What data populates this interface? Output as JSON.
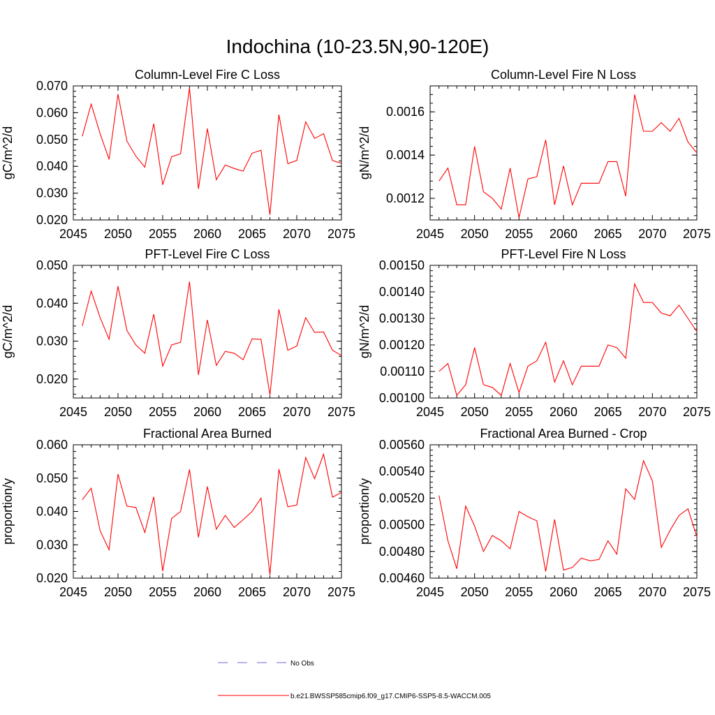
{
  "title": "Indochina (10-23.5N,90-120E)",
  "line_color": "#ff0000",
  "obs_color": "#6a6ac8",
  "legend": {
    "obs_label": "No Obs",
    "model_label": "b.e21.BWSSP585cmip6.f09_g17.CMIP6-SSP5-8.5-WACCM.005"
  },
  "chart_data": [
    {
      "type": "line",
      "title": "Column-Level Fire C Loss",
      "ylabel": "gC/m^2/d",
      "xlim": [
        2045,
        2075
      ],
      "ylim": [
        0.02,
        0.07
      ],
      "xticks": [
        "2045",
        "2050",
        "2055",
        "2060",
        "2065",
        "2070",
        "2075"
      ],
      "yticks": [
        "0.020",
        "0.030",
        "0.040",
        "0.050",
        "0.060",
        "0.070"
      ],
      "x": [
        2046,
        2047,
        2048,
        2049,
        2050,
        2051,
        2052,
        2053,
        2054,
        2055,
        2056,
        2057,
        2058,
        2059,
        2060,
        2061,
        2062,
        2063,
        2064,
        2065,
        2066,
        2067,
        2068,
        2069,
        2070,
        2071,
        2072,
        2073,
        2074,
        2075
      ],
      "y": [
        0.0512,
        0.0632,
        0.0522,
        0.0426,
        0.0669,
        0.0494,
        0.0438,
        0.0397,
        0.0559,
        0.0331,
        0.0436,
        0.0447,
        0.0693,
        0.0316,
        0.0541,
        0.035,
        0.0405,
        0.0392,
        0.0382,
        0.0449,
        0.046,
        0.0219,
        0.0593,
        0.041,
        0.0422,
        0.0566,
        0.0504,
        0.0522,
        0.0422,
        0.0411
      ]
    },
    {
      "type": "line",
      "title": "Column-Level Fire N Loss",
      "ylabel": "gN/m^2/d",
      "xlim": [
        2045,
        2075
      ],
      "ylim": [
        0.0011,
        0.00172
      ],
      "xticks": [
        "2045",
        "2050",
        "2055",
        "2060",
        "2065",
        "2070",
        "2075"
      ],
      "yticks": [
        "0.0012",
        "0.0014",
        "0.0016"
      ],
      "x": [
        2046,
        2047,
        2048,
        2049,
        2050,
        2051,
        2052,
        2053,
        2054,
        2055,
        2056,
        2057,
        2058,
        2059,
        2060,
        2061,
        2062,
        2063,
        2064,
        2065,
        2066,
        2067,
        2068,
        2069,
        2070,
        2071,
        2072,
        2073,
        2074,
        2075
      ],
      "y": [
        0.00128,
        0.00134,
        0.00117,
        0.00117,
        0.00144,
        0.00123,
        0.0012,
        0.00115,
        0.00134,
        0.00111,
        0.00129,
        0.0013,
        0.00147,
        0.00117,
        0.00135,
        0.00117,
        0.00127,
        0.00127,
        0.00127,
        0.00137,
        0.00137,
        0.00121,
        0.00168,
        0.00151,
        0.00151,
        0.00155,
        0.00151,
        0.00157,
        0.00146,
        0.00141
      ]
    },
    {
      "type": "line",
      "title": "PFT-Level Fire C Loss",
      "ylabel": "gC/m^2/d",
      "xlim": [
        2045,
        2075
      ],
      "ylim": [
        0.015,
        0.05
      ],
      "xticks": [
        "2045",
        "2050",
        "2055",
        "2060",
        "2065",
        "2070",
        "2075"
      ],
      "yticks": [
        "0.020",
        "0.030",
        "0.040",
        "0.050"
      ],
      "x": [
        2046,
        2047,
        2048,
        2049,
        2050,
        2051,
        2052,
        2053,
        2054,
        2055,
        2056,
        2057,
        2058,
        2059,
        2060,
        2061,
        2062,
        2063,
        2064,
        2065,
        2066,
        2067,
        2068,
        2069,
        2070,
        2071,
        2072,
        2073,
        2074,
        2075
      ],
      "y": [
        0.034,
        0.0432,
        0.0362,
        0.0305,
        0.0445,
        0.0328,
        0.029,
        0.0268,
        0.0371,
        0.0234,
        0.029,
        0.0297,
        0.0457,
        0.0211,
        0.0356,
        0.0236,
        0.0273,
        0.0268,
        0.0251,
        0.0306,
        0.0305,
        0.0158,
        0.0384,
        0.0276,
        0.0287,
        0.0362,
        0.0323,
        0.0324,
        0.0276,
        0.0262
      ]
    },
    {
      "type": "line",
      "title": "PFT-Level Fire N Loss",
      "ylabel": "gN/m^2/d",
      "xlim": [
        2045,
        2075
      ],
      "ylim": [
        0.001,
        0.0015
      ],
      "xticks": [
        "2045",
        "2050",
        "2055",
        "2060",
        "2065",
        "2070",
        "2075"
      ],
      "yticks": [
        "0.00100",
        "0.00110",
        "0.00120",
        "0.00130",
        "0.00140",
        "0.00150"
      ],
      "x": [
        2046,
        2047,
        2048,
        2049,
        2050,
        2051,
        2052,
        2053,
        2054,
        2055,
        2056,
        2057,
        2058,
        2059,
        2060,
        2061,
        2062,
        2063,
        2064,
        2065,
        2066,
        2067,
        2068,
        2069,
        2070,
        2071,
        2072,
        2073,
        2074,
        2075
      ],
      "y": [
        0.0011,
        0.00113,
        0.00101,
        0.00105,
        0.00119,
        0.00105,
        0.00104,
        0.00101,
        0.00113,
        0.00102,
        0.00112,
        0.00114,
        0.00121,
        0.00106,
        0.00114,
        0.00105,
        0.00112,
        0.00112,
        0.00112,
        0.0012,
        0.00119,
        0.00115,
        0.00143,
        0.00136,
        0.00136,
        0.00132,
        0.00131,
        0.00135,
        0.0013,
        0.00125
      ]
    },
    {
      "type": "line",
      "title": "Fractional Area Burned",
      "ylabel": "proportion/y",
      "xlim": [
        2045,
        2075
      ],
      "ylim": [
        0.02,
        0.06
      ],
      "xticks": [
        "2045",
        "2050",
        "2055",
        "2060",
        "2065",
        "2070",
        "2075"
      ],
      "yticks": [
        "0.020",
        "0.030",
        "0.040",
        "0.050",
        "0.060"
      ],
      "x": [
        2046,
        2047,
        2048,
        2049,
        2050,
        2051,
        2052,
        2053,
        2054,
        2055,
        2056,
        2057,
        2058,
        2059,
        2060,
        2061,
        2062,
        2063,
        2064,
        2065,
        2066,
        2067,
        2068,
        2069,
        2070,
        2071,
        2072,
        2073,
        2074,
        2075
      ],
      "y": [
        0.0435,
        0.047,
        0.0342,
        0.0285,
        0.0512,
        0.0416,
        0.0412,
        0.0337,
        0.0444,
        0.0221,
        0.0379,
        0.04,
        0.0526,
        0.0322,
        0.0475,
        0.0347,
        0.0388,
        0.0352,
        0.0375,
        0.04,
        0.044,
        0.021,
        0.0527,
        0.0414,
        0.0419,
        0.0562,
        0.0498,
        0.0572,
        0.0443,
        0.0457
      ]
    },
    {
      "type": "line",
      "title": "Fractional Area Burned - Crop",
      "ylabel": "proportion/y",
      "xlim": [
        2045,
        2075
      ],
      "ylim": [
        0.0046,
        0.0056
      ],
      "xticks": [
        "2045",
        "2050",
        "2055",
        "2060",
        "2065",
        "2070",
        "2075"
      ],
      "yticks": [
        "0.00460",
        "0.00480",
        "0.00500",
        "0.00520",
        "0.00540",
        "0.00560"
      ],
      "x": [
        2046,
        2047,
        2048,
        2049,
        2050,
        2051,
        2052,
        2053,
        2054,
        2055,
        2056,
        2057,
        2058,
        2059,
        2060,
        2061,
        2062,
        2063,
        2064,
        2065,
        2066,
        2067,
        2068,
        2069,
        2070,
        2071,
        2072,
        2073,
        2074,
        2075
      ],
      "y": [
        0.00522,
        0.00488,
        0.00467,
        0.00514,
        0.00499,
        0.0048,
        0.00492,
        0.00488,
        0.00482,
        0.0051,
        0.00506,
        0.00503,
        0.00465,
        0.00504,
        0.00466,
        0.00468,
        0.00475,
        0.00473,
        0.00474,
        0.00488,
        0.00478,
        0.00527,
        0.00519,
        0.00548,
        0.00533,
        0.00483,
        0.00496,
        0.00507,
        0.00512,
        0.00491
      ]
    }
  ]
}
